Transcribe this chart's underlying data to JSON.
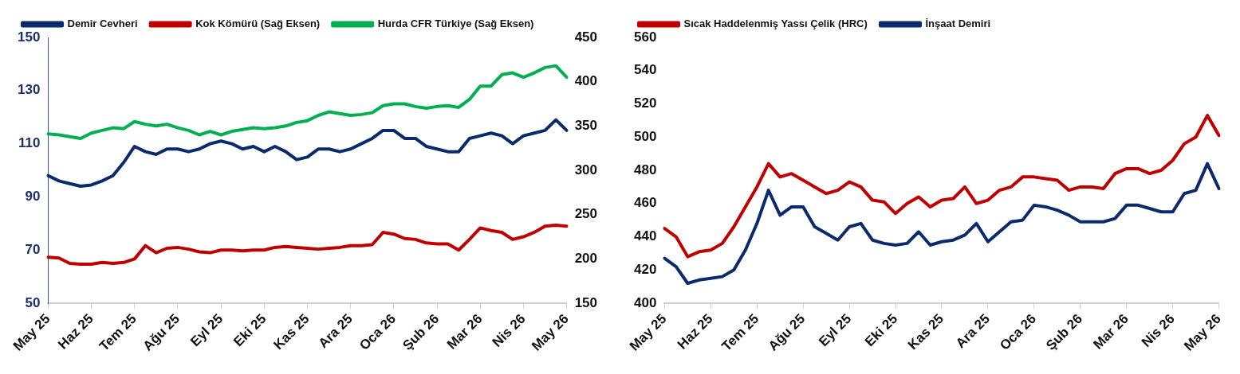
{
  "chart_data": [
    {
      "type": "line",
      "legend": "top",
      "marker": "none",
      "categories": [
        "May 25",
        null,
        null,
        null,
        "Haz 25",
        null,
        null,
        null,
        "Tem 25",
        null,
        null,
        null,
        "Ağu 25",
        null,
        null,
        null,
        "Eyl 25",
        null,
        null,
        null,
        "Eki 25",
        null,
        null,
        null,
        "Kas 25",
        null,
        null,
        null,
        "Ara 25",
        null,
        null,
        null,
        "Oca 26",
        null,
        null,
        null,
        "Şub 26",
        null,
        null,
        null,
        "Mar 26",
        null,
        null,
        null,
        "Nis 26",
        null,
        null,
        null,
        "May 26"
      ],
      "ylim": [
        50,
        150
      ],
      "yticks": [
        50,
        70,
        90,
        110,
        130,
        150
      ],
      "y2lim": [
        150,
        450
      ],
      "y2ticks": [
        150,
        200,
        250,
        300,
        350,
        400,
        450
      ],
      "series": [
        {
          "name": "Demir Cevheri",
          "color": "#0b2a6b",
          "values": [
            98,
            96,
            95,
            94,
            94.5,
            96,
            98,
            103,
            109,
            107,
            106,
            108,
            108,
            107,
            108,
            110,
            111,
            110,
            108,
            109,
            107,
            109,
            107,
            104,
            105,
            108,
            108,
            107,
            108,
            110,
            112,
            115,
            115,
            112,
            112,
            109,
            108,
            107,
            107,
            112,
            113,
            114,
            113,
            110,
            113,
            114,
            115,
            119,
            115
          ]
        },
        {
          "name": "Kok Kömürü (Sağ Eksen)",
          "color": "#c00000",
          "axis": "y2",
          "values": [
            202,
            201,
            195,
            194,
            194,
            196,
            195,
            196,
            200,
            215,
            207,
            212,
            213,
            211,
            208,
            207,
            210,
            210,
            209,
            210,
            210,
            213,
            214,
            213,
            212,
            211,
            212,
            213,
            215,
            215,
            216,
            230,
            228,
            223,
            222,
            218,
            217,
            217,
            210,
            222,
            235,
            232,
            230,
            222,
            225,
            230,
            237,
            238,
            237
          ]
        },
        {
          "name": "Hurda CFR Türkiye (Sağ Eksen)",
          "color": "#00b050",
          "axis": "y2",
          "values": [
            341,
            340,
            338,
            336,
            342,
            345,
            348,
            347,
            355,
            352,
            350,
            352,
            348,
            345,
            340,
            344,
            340,
            344,
            346,
            348,
            347,
            348,
            350,
            354,
            356,
            362,
            366,
            364,
            362,
            363,
            365,
            373,
            375,
            375,
            372,
            370,
            372,
            373,
            371,
            380,
            395,
            395,
            408,
            410,
            405,
            410,
            416,
            418,
            405
          ]
        }
      ]
    },
    {
      "type": "line",
      "legend": "top",
      "marker": "none",
      "categories": [
        "May 25",
        null,
        null,
        null,
        "Haz 25",
        null,
        null,
        null,
        "Tem 25",
        null,
        null,
        null,
        "Ağu 25",
        null,
        null,
        null,
        "Eyl 25",
        null,
        null,
        null,
        "Eki 25",
        null,
        null,
        null,
        "Kas 25",
        null,
        null,
        null,
        "Ara 25",
        null,
        null,
        null,
        "Oca 26",
        null,
        null,
        null,
        "Şub 26",
        null,
        null,
        null,
        "Mar 26",
        null,
        null,
        null,
        "Nis 26",
        null,
        null,
        null,
        "May 26"
      ],
      "ylim": [
        400,
        560
      ],
      "yticks": [
        400,
        420,
        440,
        460,
        480,
        500,
        520,
        540,
        560
      ],
      "series": [
        {
          "name": "Sıcak Haddelenmiş Yassı Çelik (HRC)",
          "color": "#c00000",
          "values": [
            445,
            440,
            428,
            431,
            432,
            436,
            446,
            458,
            470,
            484,
            476,
            478,
            474,
            470,
            466,
            468,
            473,
            470,
            462,
            461,
            454,
            460,
            464,
            458,
            462,
            463,
            470,
            460,
            462,
            468,
            470,
            476,
            476,
            475,
            474,
            468,
            470,
            470,
            469,
            478,
            481,
            481,
            478,
            480,
            486,
            496,
            500,
            513,
            501
          ]
        },
        {
          "name": "İnşaat Demiri",
          "color": "#0b2a6b",
          "values": [
            427,
            422,
            412,
            414,
            415,
            416,
            420,
            432,
            448,
            468,
            453,
            458,
            458,
            446,
            442,
            438,
            446,
            448,
            438,
            436,
            435,
            436,
            443,
            435,
            437,
            438,
            441,
            448,
            437,
            443,
            449,
            450,
            459,
            458,
            456,
            453,
            449,
            449,
            449,
            451,
            459,
            459,
            457,
            455,
            455,
            466,
            468,
            484,
            469
          ]
        }
      ]
    }
  ]
}
